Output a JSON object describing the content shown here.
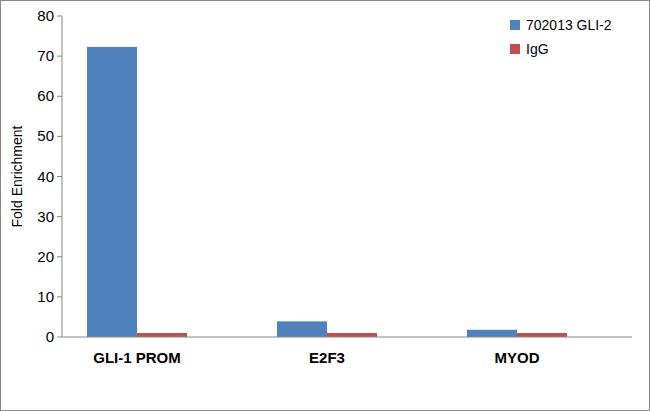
{
  "chart_data": {
    "type": "bar",
    "y_label": "Fold Enrichment",
    "categories": [
      "GLI-1 PROM",
      "E2F3",
      "MYOD"
    ],
    "series": [
      {
        "name": "702013 GLI-2",
        "color": "#4f81bd",
        "values": [
          72.3,
          3.9,
          1.8
        ]
      },
      {
        "name": "IgG",
        "color": "#c0504d",
        "values": [
          1.0,
          1.0,
          1.0
        ]
      }
    ],
    "ylim": [
      0,
      80
    ],
    "yticks": [
      0,
      10,
      20,
      30,
      40,
      50,
      60,
      70,
      80
    ],
    "grid": false,
    "legend": "top-right"
  }
}
